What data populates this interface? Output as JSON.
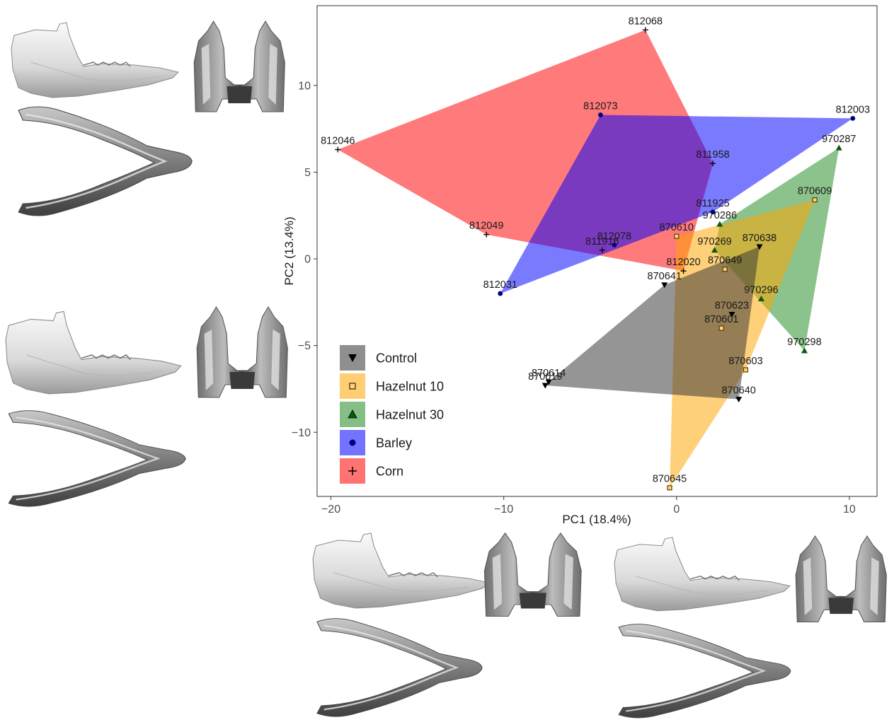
{
  "chart_data": {
    "type": "scatter",
    "xlabel": "PC1 (18.4%)",
    "ylabel": "PC2 (13.4%)",
    "xlim": [
      -20.8,
      11.6
    ],
    "ylim": [
      -13.7,
      14.6
    ],
    "xticks": [
      -20,
      -10,
      0,
      10
    ],
    "yticks": [
      -10,
      -5,
      0,
      5,
      10
    ],
    "grid": false,
    "legend_position": "bottom-left inside",
    "hulls": "convex hull polygon per group, semi-transparent fill",
    "series": [
      {
        "name": "Control",
        "marker": "triangle-down",
        "color": "#000000",
        "hull_color": "#333333",
        "points": [
          {
            "id": "870614",
            "x": -7.4,
            "y": -7.1
          },
          {
            "id": "870619",
            "x": -7.6,
            "y": -7.3
          },
          {
            "id": "870640",
            "x": 3.6,
            "y": -8.1
          },
          {
            "id": "870638",
            "x": 4.8,
            "y": 0.7
          },
          {
            "id": "870623",
            "x": 3.2,
            "y": -3.2
          },
          {
            "id": "870641",
            "x": -0.7,
            "y": -1.5
          }
        ]
      },
      {
        "name": "Hazelnut 10",
        "marker": "square-open",
        "color": "#ff9f00",
        "hull_color": "#ffa500",
        "points": [
          {
            "id": "870645",
            "x": -0.4,
            "y": -13.2
          },
          {
            "id": "870603",
            "x": 4.0,
            "y": -6.4
          },
          {
            "id": "870601",
            "x": 2.6,
            "y": -4.0
          },
          {
            "id": "870649",
            "x": 2.8,
            "y": -0.6
          },
          {
            "id": "870610",
            "x": 0.0,
            "y": 1.3
          },
          {
            "id": "870609",
            "x": 8.0,
            "y": 3.4
          }
        ]
      },
      {
        "name": "Hazelnut 30",
        "marker": "triangle-up",
        "color": "#0a5a0a",
        "hull_color": "#228b22",
        "points": [
          {
            "id": "970287",
            "x": 9.4,
            "y": 6.4
          },
          {
            "id": "970286",
            "x": 2.5,
            "y": 2.0
          },
          {
            "id": "970269",
            "x": 2.2,
            "y": 0.5
          },
          {
            "id": "970296",
            "x": 4.9,
            "y": -2.3
          },
          {
            "id": "970298",
            "x": 7.4,
            "y": -5.3
          }
        ]
      },
      {
        "name": "Barley",
        "marker": "circle",
        "color": "#000080",
        "hull_color": "#0000ff",
        "points": [
          {
            "id": "812003",
            "x": 10.2,
            "y": 8.1
          },
          {
            "id": "812073",
            "x": -4.4,
            "y": 8.3
          },
          {
            "id": "811925",
            "x": 2.1,
            "y": 2.7
          },
          {
            "id": "812078",
            "x": -3.6,
            "y": 0.8
          },
          {
            "id": "812031",
            "x": -10.2,
            "y": -2.0
          }
        ]
      },
      {
        "name": "Corn",
        "marker": "plus",
        "color": "#000000",
        "hull_color": "#ff0000",
        "points": [
          {
            "id": "812068",
            "x": -1.8,
            "y": 13.2
          },
          {
            "id": "812046",
            "x": -19.6,
            "y": 6.3
          },
          {
            "id": "811958",
            "x": 2.1,
            "y": 5.5
          },
          {
            "id": "812049",
            "x": -11.0,
            "y": 1.4
          },
          {
            "id": "811916",
            "x": -4.3,
            "y": 0.5
          },
          {
            "id": "812020",
            "x": 0.4,
            "y": -0.7
          }
        ]
      }
    ]
  },
  "specimen_images": {
    "icon": "mandible-3d-render",
    "panels": [
      "top-left",
      "middle-left",
      "bottom-center",
      "bottom-right"
    ],
    "views": [
      "lateral",
      "posterior",
      "occlusal"
    ]
  },
  "colors": {
    "axis": "#333333",
    "tick_text": "#4d4d4d",
    "panel_border": "#333333"
  }
}
